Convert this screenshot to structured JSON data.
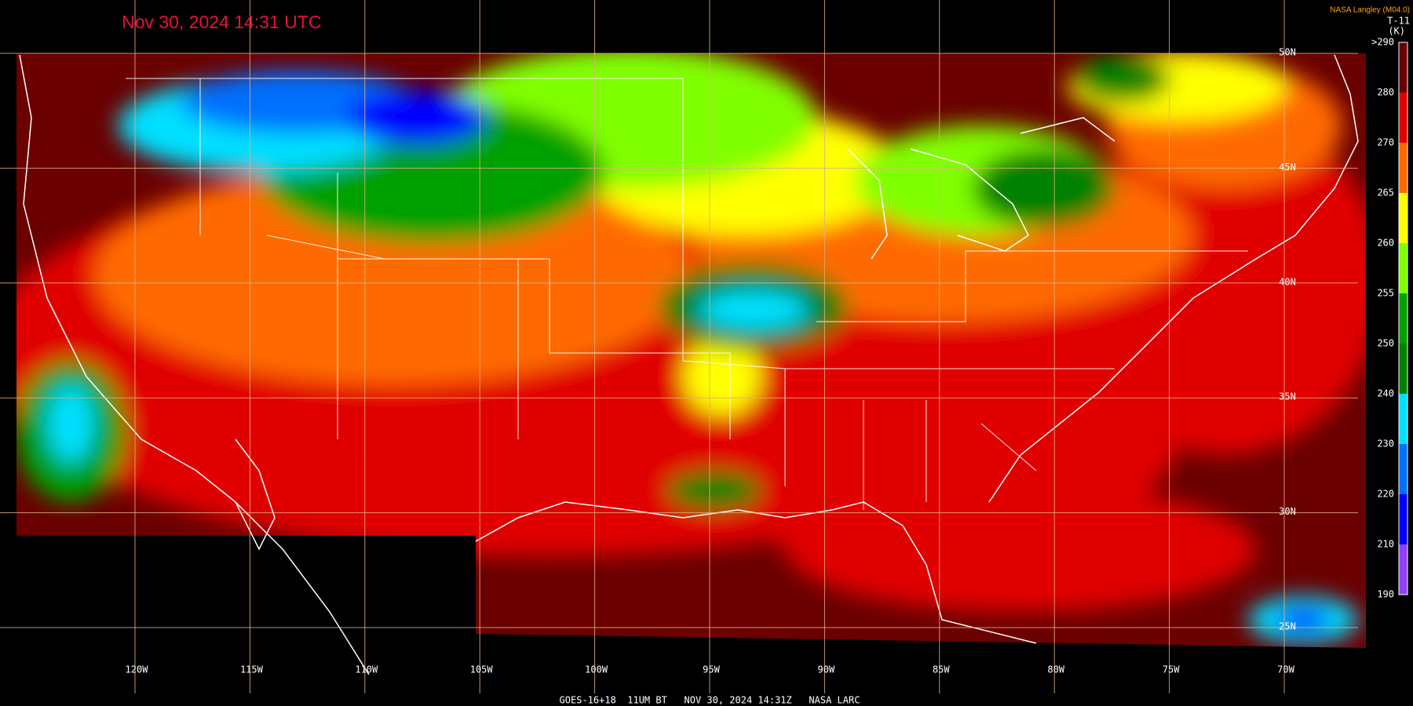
{
  "timestamp": "Nov 30, 2024 14:31 UTC",
  "credit": "NASA Langley (M04.0)",
  "product": "T-11",
  "unit": "(K)",
  "colorbar": {
    "labels": [
      ">290",
      "280",
      "270",
      "265",
      "260",
      "255",
      "250",
      "240",
      "230",
      "220",
      "210",
      "190"
    ],
    "colors": [
      "#6a0000",
      "#e00000",
      "#ff6a00",
      "#ffff00",
      "#80ff00",
      "#00a000",
      "#008000",
      "#00e0ff",
      "#0070ff",
      "#0000ff",
      "#9040ff"
    ]
  },
  "longitudes": [
    "120W",
    "115W",
    "110W",
    "105W",
    "100W",
    "95W",
    "90W",
    "85W",
    "80W",
    "75W",
    "70W"
  ],
  "latitudes": [
    "50N",
    "45N",
    "40N",
    "35N",
    "30N",
    "25N"
  ],
  "footer": "GOES-16+18  11UM BT   NOV 30, 2024 14:31Z   NASA LARC"
}
